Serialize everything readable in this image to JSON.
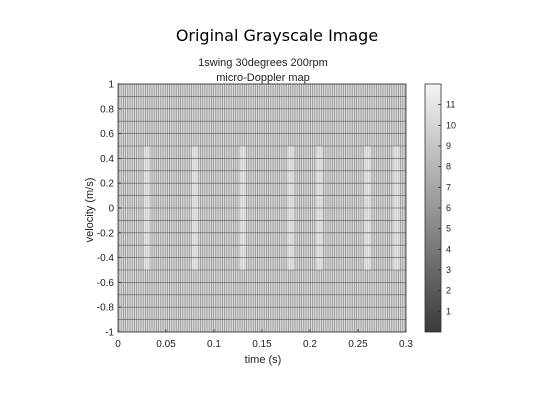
{
  "figure": {
    "title": "Original Grayscale Image"
  },
  "chart_data": {
    "type": "heatmap",
    "title_lines": [
      "1swing 30degrees 200rpm",
      "micro-Doppler map"
    ],
    "xlabel": "time (s)",
    "ylabel": "velocity (m/s)",
    "xlim": [
      0,
      0.3
    ],
    "ylim": [
      -1,
      1
    ],
    "xticks": [
      0,
      0.05,
      0.1,
      0.15,
      0.2,
      0.25,
      0.3
    ],
    "xtick_labels": [
      "0",
      "0.05",
      "0.1",
      "0.15",
      "0.2",
      "0.25",
      "0.3"
    ],
    "yticks": [
      1,
      0.8,
      0.6,
      0.4,
      0.2,
      0,
      -0.2,
      -0.4,
      -0.6,
      -0.8,
      -1
    ],
    "ytick_labels": [
      "1",
      "0.8",
      "0.6",
      "0.4",
      "0.2",
      "0",
      "-0.2",
      "-0.4",
      "-0.6",
      "-0.8",
      "-1"
    ],
    "colormap": "gray",
    "colorbar": {
      "range": [
        0,
        12
      ],
      "ticks": [
        1,
        2,
        3,
        4,
        5,
        6,
        7,
        8,
        9,
        10,
        11
      ],
      "tick_labels": [
        "1",
        "2",
        "3",
        "4",
        "5",
        "6",
        "7",
        "8",
        "9",
        "10",
        "11"
      ]
    },
    "grid": true,
    "colors": {
      "background_level": "#d8d8d8",
      "stripe_dark": "#8a8a8a",
      "stripe_light": "#f2f2f2"
    }
  }
}
